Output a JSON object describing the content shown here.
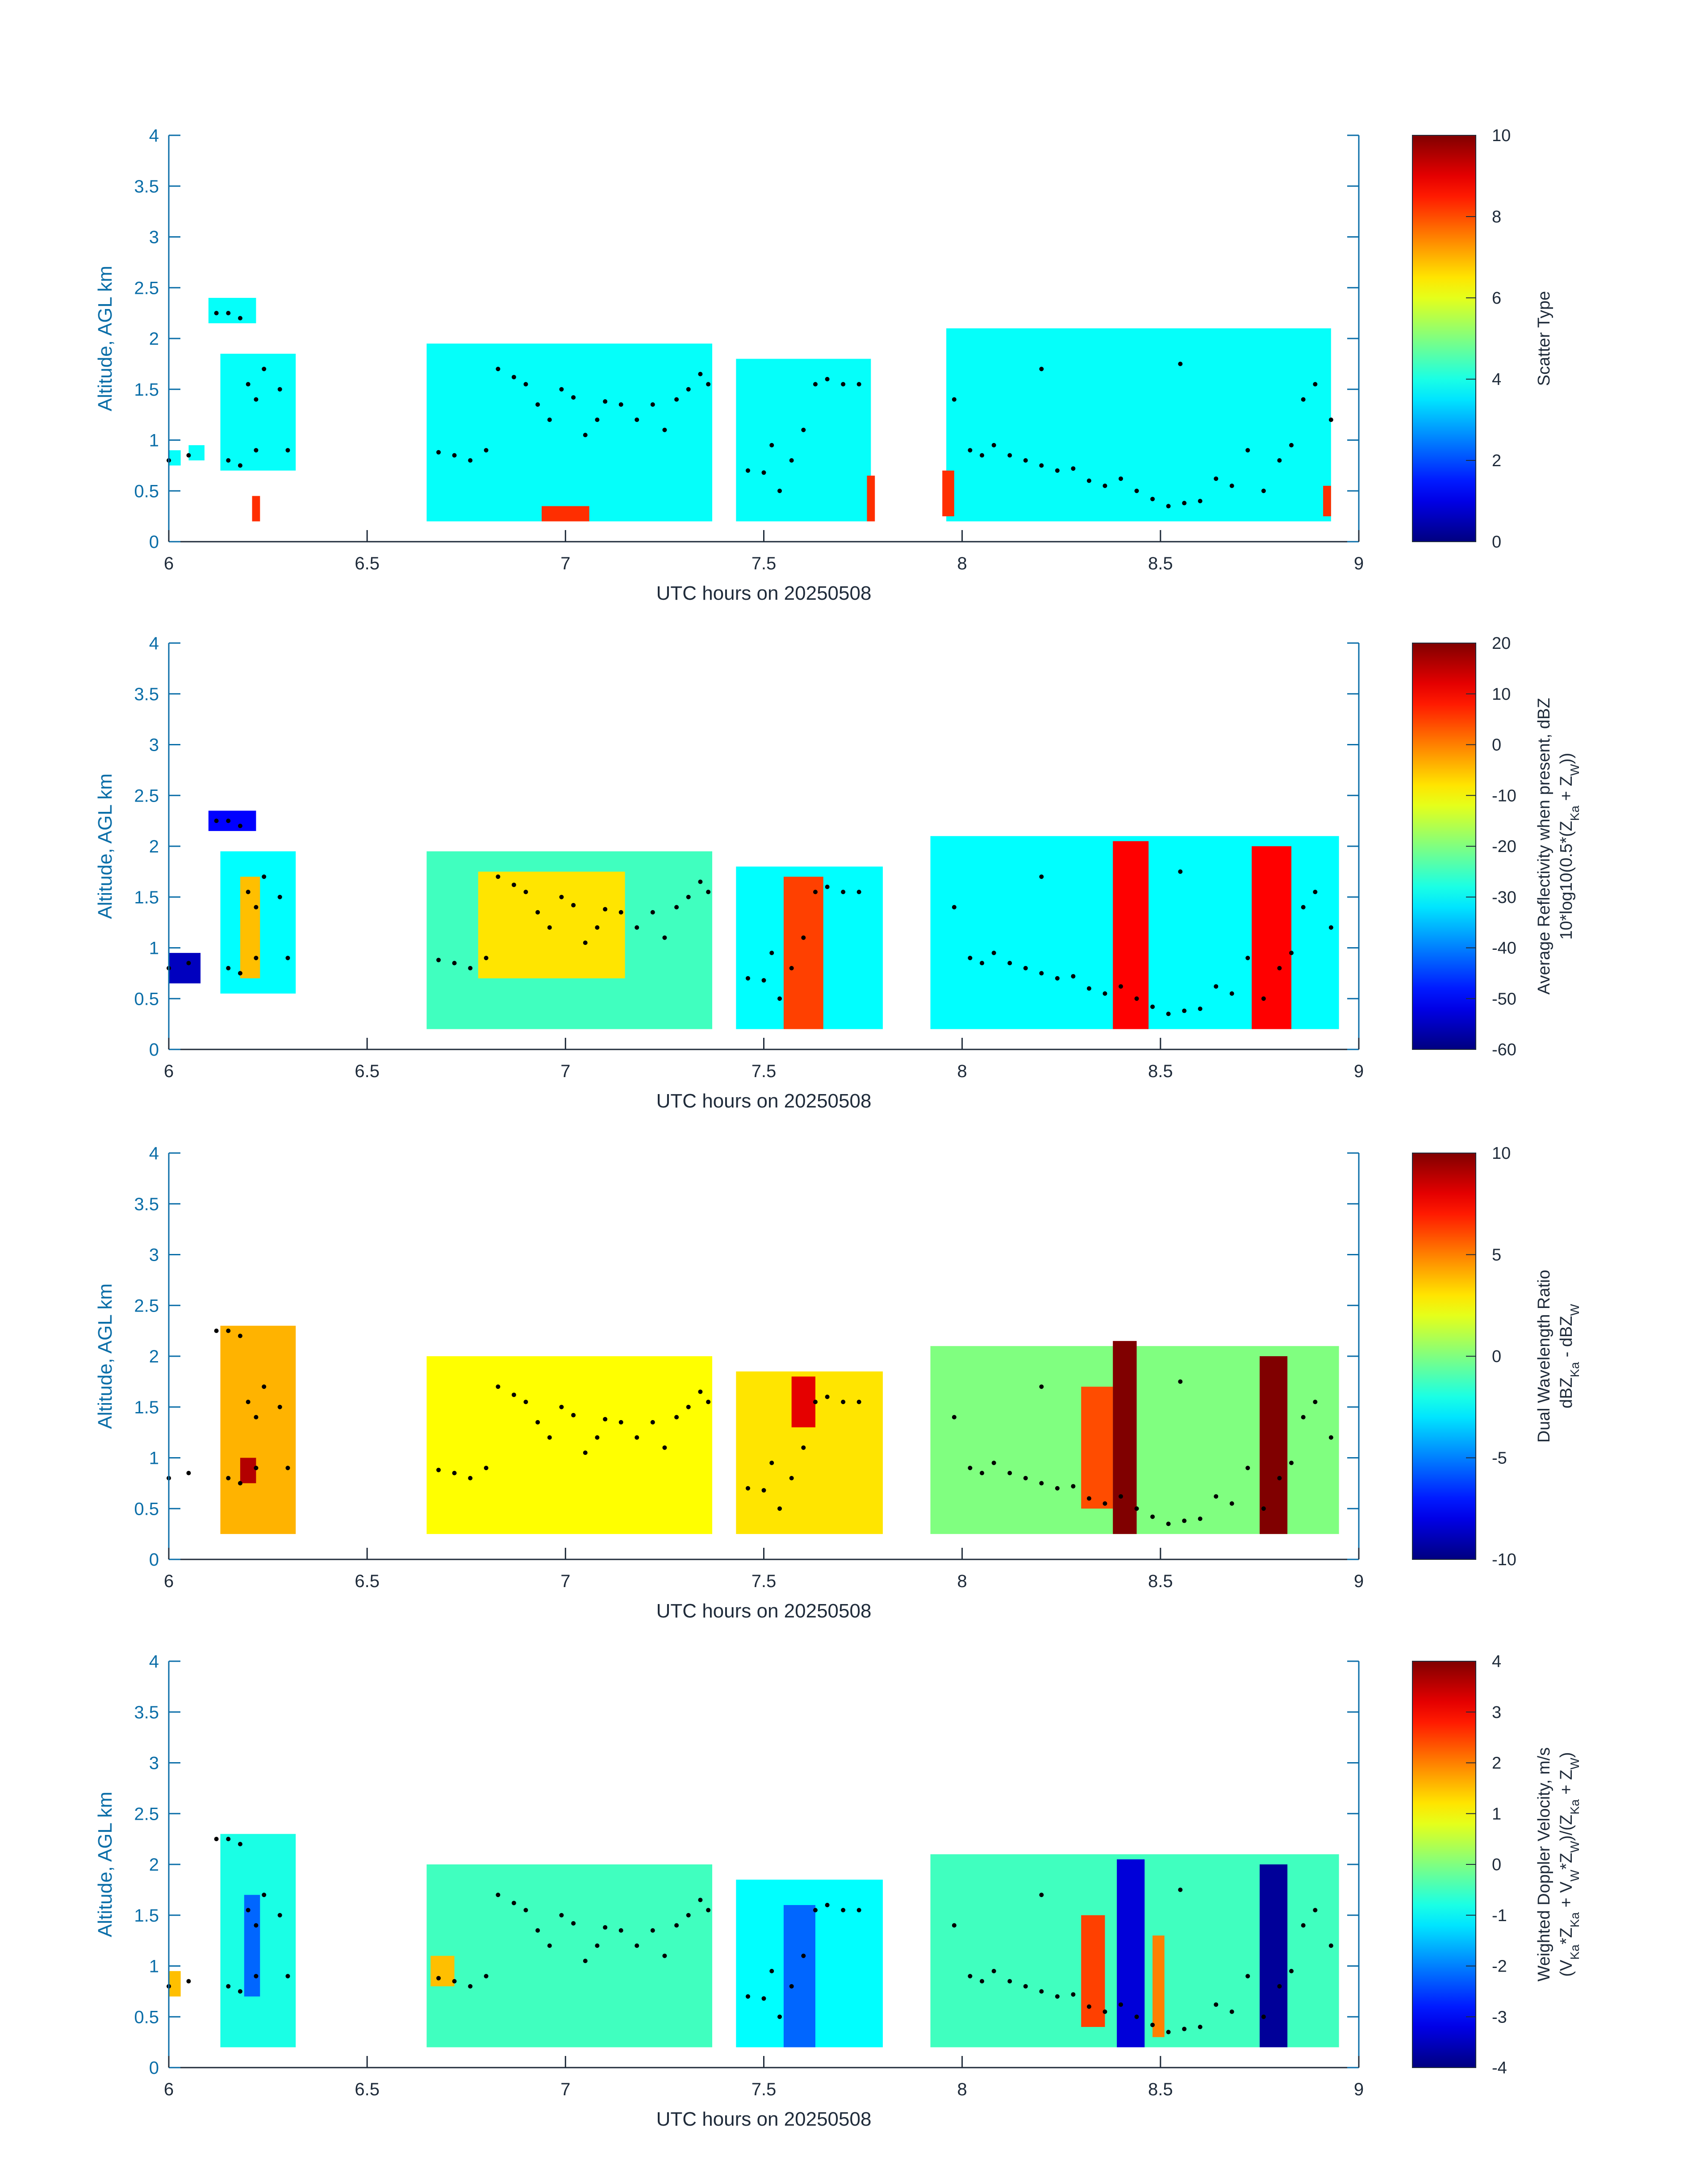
{
  "chart_data": [
    {
      "type": "heatmap",
      "xlabel": "UTC hours on 20250508",
      "ylabel": "Altitude, AGL km",
      "xlim": [
        6,
        9
      ],
      "ylim": [
        0,
        4
      ],
      "xticks": [
        "6",
        "6.5",
        "7",
        "7.5",
        "8",
        "8.5",
        "9"
      ],
      "yticks": [
        "0",
        "0.5",
        "1",
        "1.5",
        "2",
        "2.5",
        "3",
        "3.5",
        "4"
      ],
      "colorbar": {
        "label_lines": [
          "Scatter Type"
        ],
        "min": 0,
        "max": 10,
        "ticks": [
          "0",
          "2",
          "4",
          "6",
          "8",
          "10"
        ]
      },
      "colormap": "jet",
      "data": [
        {
          "x0": 6.0,
          "x1": 6.03,
          "y0": 0.75,
          "y1": 0.9,
          "v": 3.8
        },
        {
          "x0": 6.05,
          "x1": 6.09,
          "y0": 0.8,
          "y1": 0.95,
          "v": 3.8
        },
        {
          "x0": 6.1,
          "x1": 6.22,
          "y0": 2.15,
          "y1": 2.4,
          "v": 3.8
        },
        {
          "x0": 6.13,
          "x1": 6.32,
          "y0": 0.7,
          "y1": 1.85,
          "v": 3.8
        },
        {
          "x0": 6.21,
          "x1": 6.23,
          "y0": 0.2,
          "y1": 0.45,
          "v": 8.3
        },
        {
          "x0": 6.65,
          "x1": 7.37,
          "y0": 0.2,
          "y1": 1.95,
          "v": 3.8
        },
        {
          "x0": 6.94,
          "x1": 7.06,
          "y0": 0.2,
          "y1": 0.35,
          "v": 8.3
        },
        {
          "x0": 7.43,
          "x1": 7.77,
          "y0": 0.2,
          "y1": 1.8,
          "v": 3.8
        },
        {
          "x0": 7.76,
          "x1": 7.78,
          "y0": 0.2,
          "y1": 0.65,
          "v": 8.3
        },
        {
          "x0": 7.96,
          "x1": 8.93,
          "y0": 0.2,
          "y1": 2.1,
          "v": 3.8
        },
        {
          "x0": 7.95,
          "x1": 7.98,
          "y0": 0.25,
          "y1": 0.7,
          "v": 8.3
        },
        {
          "x0": 8.91,
          "x1": 8.93,
          "y0": 0.25,
          "y1": 0.55,
          "v": 8.3
        }
      ]
    },
    {
      "type": "heatmap",
      "xlabel": "UTC hours on 20250508",
      "ylabel": "Altitude, AGL km",
      "xlim": [
        6,
        9
      ],
      "ylim": [
        0,
        4
      ],
      "xticks": [
        "6",
        "6.5",
        "7",
        "7.5",
        "8",
        "8.5",
        "9"
      ],
      "yticks": [
        "0",
        "0.5",
        "1",
        "1.5",
        "2",
        "2.5",
        "3",
        "3.5",
        "4"
      ],
      "colorbar": {
        "label_lines": [
          "Average Reflectivity when present, dBZ",
          "10*log10(0.5*(Z_Ka + Z_W))"
        ],
        "min": -60,
        "max": 20,
        "ticks": [
          "-60",
          "-50",
          "-40",
          "-30",
          "-20",
          "-10",
          "0",
          "10",
          "20"
        ]
      },
      "colormap": "jet",
      "data": [
        {
          "x0": 6.0,
          "x1": 6.08,
          "y0": 0.65,
          "y1": 0.95,
          "v": -55
        },
        {
          "x0": 6.1,
          "x1": 6.22,
          "y0": 2.15,
          "y1": 2.35,
          "v": -50
        },
        {
          "x0": 6.13,
          "x1": 6.32,
          "y0": 0.55,
          "y1": 1.95,
          "v": -30
        },
        {
          "x0": 6.18,
          "x1": 6.23,
          "y0": 0.7,
          "y1": 1.7,
          "v": -5
        },
        {
          "x0": 6.65,
          "x1": 7.37,
          "y0": 0.2,
          "y1": 1.95,
          "v": -25
        },
        {
          "x0": 6.78,
          "x1": 7.15,
          "y0": 0.7,
          "y1": 1.75,
          "v": -8
        },
        {
          "x0": 7.43,
          "x1": 7.8,
          "y0": 0.2,
          "y1": 1.8,
          "v": -30
        },
        {
          "x0": 7.55,
          "x1": 7.65,
          "y0": 0.2,
          "y1": 1.7,
          "v": 5
        },
        {
          "x0": 7.92,
          "x1": 8.95,
          "y0": 0.2,
          "y1": 2.1,
          "v": -30
        },
        {
          "x0": 8.38,
          "x1": 8.47,
          "y0": 0.2,
          "y1": 2.05,
          "v": 10
        },
        {
          "x0": 8.73,
          "x1": 8.83,
          "y0": 0.2,
          "y1": 2.0,
          "v": 10
        }
      ]
    },
    {
      "type": "heatmap",
      "xlabel": "UTC hours on 20250508",
      "ylabel": "Altitude, AGL km",
      "xlim": [
        6,
        9
      ],
      "ylim": [
        0,
        4
      ],
      "xticks": [
        "6",
        "6.5",
        "7",
        "7.5",
        "8",
        "8.5",
        "9"
      ],
      "yticks": [
        "0",
        "0.5",
        "1",
        "1.5",
        "2",
        "2.5",
        "3",
        "3.5",
        "4"
      ],
      "colorbar": {
        "label_lines": [
          "Dual Wavelength Ratio",
          "dBZ_Ka - dBZ_W"
        ],
        "min": -10,
        "max": 10,
        "ticks": [
          "-10",
          "-5",
          "0",
          "5",
          "10"
        ]
      },
      "colormap": "jet",
      "data": [
        {
          "x0": 6.13,
          "x1": 6.32,
          "y0": 0.25,
          "y1": 2.3,
          "v": 4
        },
        {
          "x0": 6.18,
          "x1": 6.22,
          "y0": 0.75,
          "y1": 1.0,
          "v": 9
        },
        {
          "x0": 6.65,
          "x1": 7.37,
          "y0": 0.25,
          "y1": 2.0,
          "v": 2.5
        },
        {
          "x0": 7.43,
          "x1": 7.8,
          "y0": 0.25,
          "y1": 1.85,
          "v": 3
        },
        {
          "x0": 7.57,
          "x1": 7.63,
          "y0": 1.3,
          "y1": 1.8,
          "v": 8
        },
        {
          "x0": 7.92,
          "x1": 8.95,
          "y0": 0.25,
          "y1": 2.1,
          "v": 0
        },
        {
          "x0": 8.3,
          "x1": 8.38,
          "y0": 0.5,
          "y1": 1.7,
          "v": 6
        },
        {
          "x0": 8.38,
          "x1": 8.44,
          "y0": 0.25,
          "y1": 2.15,
          "v": 10
        },
        {
          "x0": 8.75,
          "x1": 8.82,
          "y0": 0.25,
          "y1": 2.0,
          "v": 10
        }
      ]
    },
    {
      "type": "heatmap",
      "xlabel": "UTC hours on 20250508",
      "ylabel": "Altitude, AGL km",
      "xlim": [
        6,
        9
      ],
      "ylim": [
        0,
        4
      ],
      "xticks": [
        "6",
        "6.5",
        "7",
        "7.5",
        "8",
        "8.5",
        "9"
      ],
      "yticks": [
        "0",
        "0.5",
        "1",
        "1.5",
        "2",
        "2.5",
        "3",
        "3.5",
        "4"
      ],
      "colorbar": {
        "label_lines": [
          "Weighted Doppler Velocity, m/s",
          "(V_Ka*Z_Ka + V_W*Z_W)/(Z_Ka + Z_W)"
        ],
        "min": -4,
        "max": 4,
        "ticks": [
          "-4",
          "-3",
          "-2",
          "-1",
          "0",
          "1",
          "2",
          "3",
          "4"
        ]
      },
      "colormap": "jet",
      "data": [
        {
          "x0": 6.0,
          "x1": 6.03,
          "y0": 0.7,
          "y1": 0.95,
          "v": 1.5
        },
        {
          "x0": 6.13,
          "x1": 6.32,
          "y0": 0.2,
          "y1": 2.3,
          "v": -0.8
        },
        {
          "x0": 6.19,
          "x1": 6.23,
          "y0": 0.7,
          "y1": 1.7,
          "v": -2.2
        },
        {
          "x0": 6.65,
          "x1": 7.37,
          "y0": 0.2,
          "y1": 2.0,
          "v": -0.5
        },
        {
          "x0": 6.66,
          "x1": 6.72,
          "y0": 0.8,
          "y1": 1.1,
          "v": 1.5
        },
        {
          "x0": 7.43,
          "x1": 7.8,
          "y0": 0.2,
          "y1": 1.85,
          "v": -1.0
        },
        {
          "x0": 7.55,
          "x1": 7.63,
          "y0": 0.2,
          "y1": 1.6,
          "v": -2.2
        },
        {
          "x0": 7.92,
          "x1": 8.95,
          "y0": 0.2,
          "y1": 2.1,
          "v": -0.5
        },
        {
          "x0": 8.3,
          "x1": 8.36,
          "y0": 0.4,
          "y1": 1.5,
          "v": 2.5
        },
        {
          "x0": 8.39,
          "x1": 8.46,
          "y0": 0.2,
          "y1": 2.05,
          "v": -3.3
        },
        {
          "x0": 8.48,
          "x1": 8.51,
          "y0": 0.3,
          "y1": 1.3,
          "v": 2.0
        },
        {
          "x0": 8.75,
          "x1": 8.82,
          "y0": 0.2,
          "y1": 2.0,
          "v": -3.8
        }
      ]
    }
  ],
  "cloud_base_points": [
    [
      6.0,
      0.8
    ],
    [
      6.05,
      0.85
    ],
    [
      6.12,
      2.25
    ],
    [
      6.15,
      2.25
    ],
    [
      6.18,
      2.2
    ],
    [
      6.2,
      1.55
    ],
    [
      6.22,
      1.4
    ],
    [
      6.24,
      1.7
    ],
    [
      6.28,
      1.5
    ],
    [
      6.15,
      0.8
    ],
    [
      6.18,
      0.75
    ],
    [
      6.22,
      0.9
    ],
    [
      6.3,
      0.9
    ],
    [
      6.68,
      0.88
    ],
    [
      6.72,
      0.85
    ],
    [
      6.76,
      0.8
    ],
    [
      6.8,
      0.9
    ],
    [
      6.83,
      1.7
    ],
    [
      6.87,
      1.62
    ],
    [
      6.9,
      1.55
    ],
    [
      6.93,
      1.35
    ],
    [
      6.96,
      1.2
    ],
    [
      6.99,
      1.5
    ],
    [
      7.02,
      1.42
    ],
    [
      7.05,
      1.05
    ],
    [
      7.08,
      1.2
    ],
    [
      7.1,
      1.38
    ],
    [
      7.14,
      1.35
    ],
    [
      7.18,
      1.2
    ],
    [
      7.22,
      1.35
    ],
    [
      7.25,
      1.1
    ],
    [
      7.28,
      1.4
    ],
    [
      7.31,
      1.5
    ],
    [
      7.34,
      1.65
    ],
    [
      7.36,
      1.55
    ],
    [
      7.46,
      0.7
    ],
    [
      7.5,
      0.68
    ],
    [
      7.52,
      0.95
    ],
    [
      7.54,
      0.5
    ],
    [
      7.57,
      0.8
    ],
    [
      7.6,
      1.1
    ],
    [
      7.63,
      1.55
    ],
    [
      7.66,
      1.6
    ],
    [
      7.7,
      1.55
    ],
    [
      7.74,
      1.55
    ],
    [
      7.98,
      1.4
    ],
    [
      8.02,
      0.9
    ],
    [
      8.05,
      0.85
    ],
    [
      8.08,
      0.95
    ],
    [
      8.12,
      0.85
    ],
    [
      8.16,
      0.8
    ],
    [
      8.2,
      0.75
    ],
    [
      8.24,
      0.7
    ],
    [
      8.28,
      0.72
    ],
    [
      8.32,
      0.6
    ],
    [
      8.36,
      0.55
    ],
    [
      8.4,
      0.62
    ],
    [
      8.44,
      0.5
    ],
    [
      8.48,
      0.42
    ],
    [
      8.52,
      0.35
    ],
    [
      8.56,
      0.38
    ],
    [
      8.6,
      0.4
    ],
    [
      8.64,
      0.62
    ],
    [
      8.68,
      0.55
    ],
    [
      8.72,
      0.9
    ],
    [
      8.76,
      0.5
    ],
    [
      8.8,
      0.8
    ],
    [
      8.83,
      0.95
    ],
    [
      8.86,
      1.4
    ],
    [
      8.89,
      1.55
    ],
    [
      8.93,
      1.2
    ],
    [
      8.2,
      1.7
    ],
    [
      8.55,
      1.75
    ]
  ]
}
